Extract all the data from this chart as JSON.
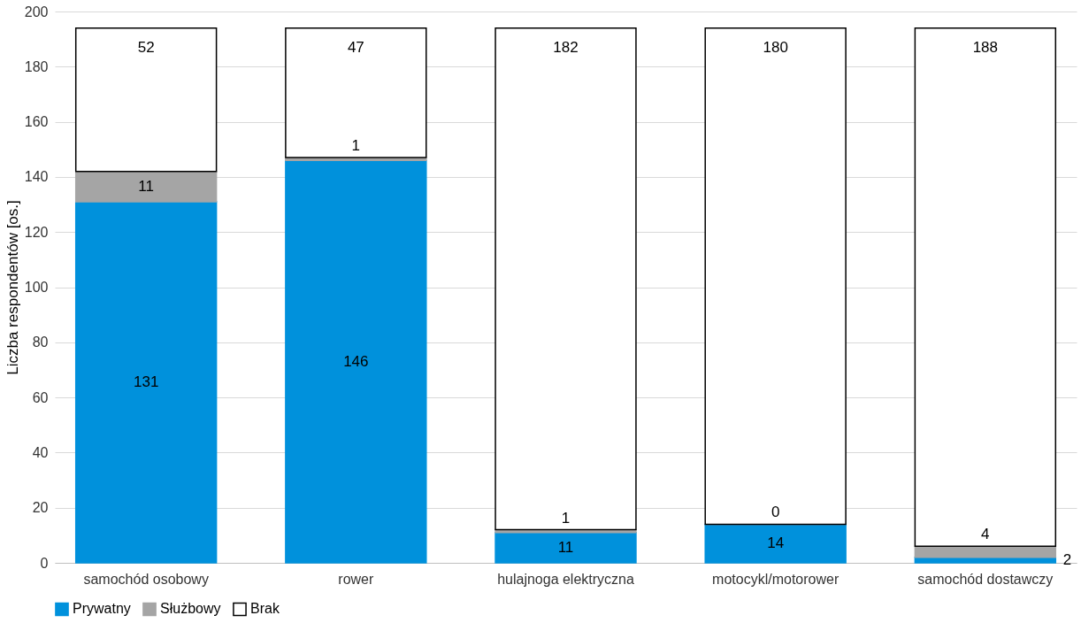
{
  "chart_data": {
    "type": "bar",
    "stacked": true,
    "ylabel": "Liczba respondentów [os.]",
    "categories": [
      "samochód osobowy",
      "rower",
      "hulajnoga elektryczna",
      "motocykl/motorower",
      "samochód dostawczy"
    ],
    "series": [
      {
        "name": "Prywatny",
        "color": "#0091dc",
        "values": [
          131,
          146,
          11,
          14,
          2
        ]
      },
      {
        "name": "Służbowy",
        "color": "#a5a5a5",
        "values": [
          11,
          1,
          1,
          0,
          4
        ]
      },
      {
        "name": "Brak",
        "color": "#ffffff",
        "values": [
          52,
          47,
          182,
          180,
          188
        ]
      }
    ],
    "ylim": [
      0,
      200
    ],
    "yticks": [
      0,
      20,
      40,
      60,
      80,
      100,
      120,
      140,
      160,
      180,
      200
    ],
    "grid": "y",
    "legend": "bottom",
    "data_labels": true
  }
}
